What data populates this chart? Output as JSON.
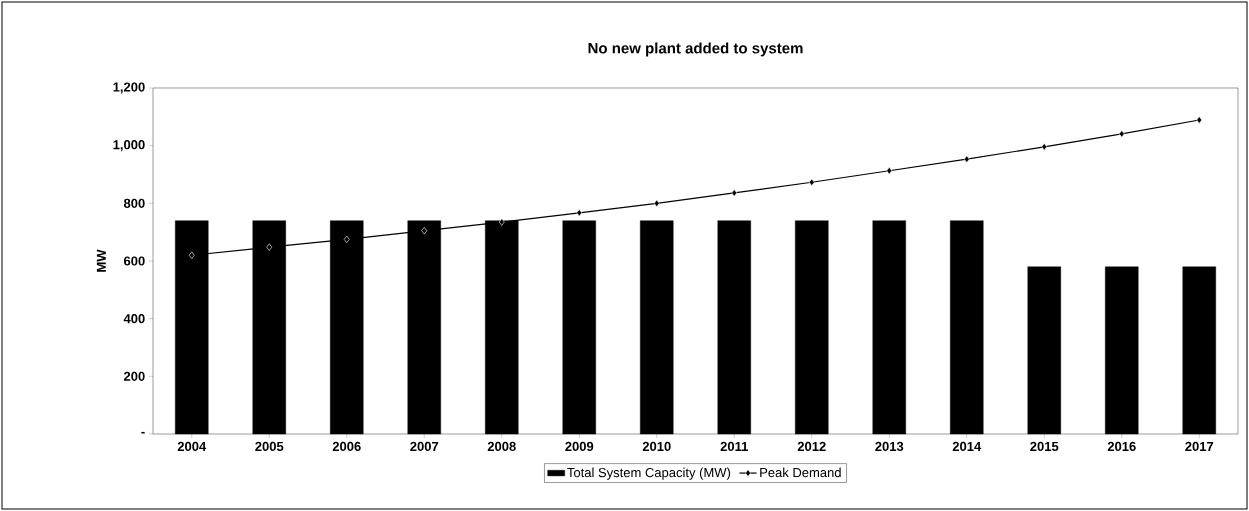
{
  "chart_data": {
    "type": "bar",
    "title": "No new plant added to system",
    "ylabel": "MW",
    "categories": [
      "2004",
      "2005",
      "2006",
      "2007",
      "2008",
      "2009",
      "2010",
      "2011",
      "2012",
      "2013",
      "2014",
      "2015",
      "2016",
      "2017"
    ],
    "series": [
      {
        "name": "Total System Capacity (MW)",
        "color": "#000000",
        "values": [
          740,
          740,
          740,
          740,
          740,
          740,
          740,
          740,
          740,
          740,
          740,
          580,
          580,
          580
        ]
      },
      {
        "name": "Peak Demand",
        "type": "line",
        "color": "#000000",
        "marker": "diamond",
        "values": [
          620,
          648,
          675,
          705,
          735,
          767,
          800,
          836,
          873,
          913,
          953,
          996,
          1041,
          1089
        ]
      }
    ],
    "ylim": [
      0,
      1200
    ],
    "yticks": [
      {
        "value": 0,
        "label": "-"
      },
      {
        "value": 200,
        "label": "200"
      },
      {
        "value": 400,
        "label": "400"
      },
      {
        "value": 600,
        "label": "600"
      },
      {
        "value": 800,
        "label": "800"
      },
      {
        "value": 1000,
        "label": "1,000"
      },
      {
        "value": 1200,
        "label": "1,200"
      }
    ],
    "legend": "bottom"
  }
}
